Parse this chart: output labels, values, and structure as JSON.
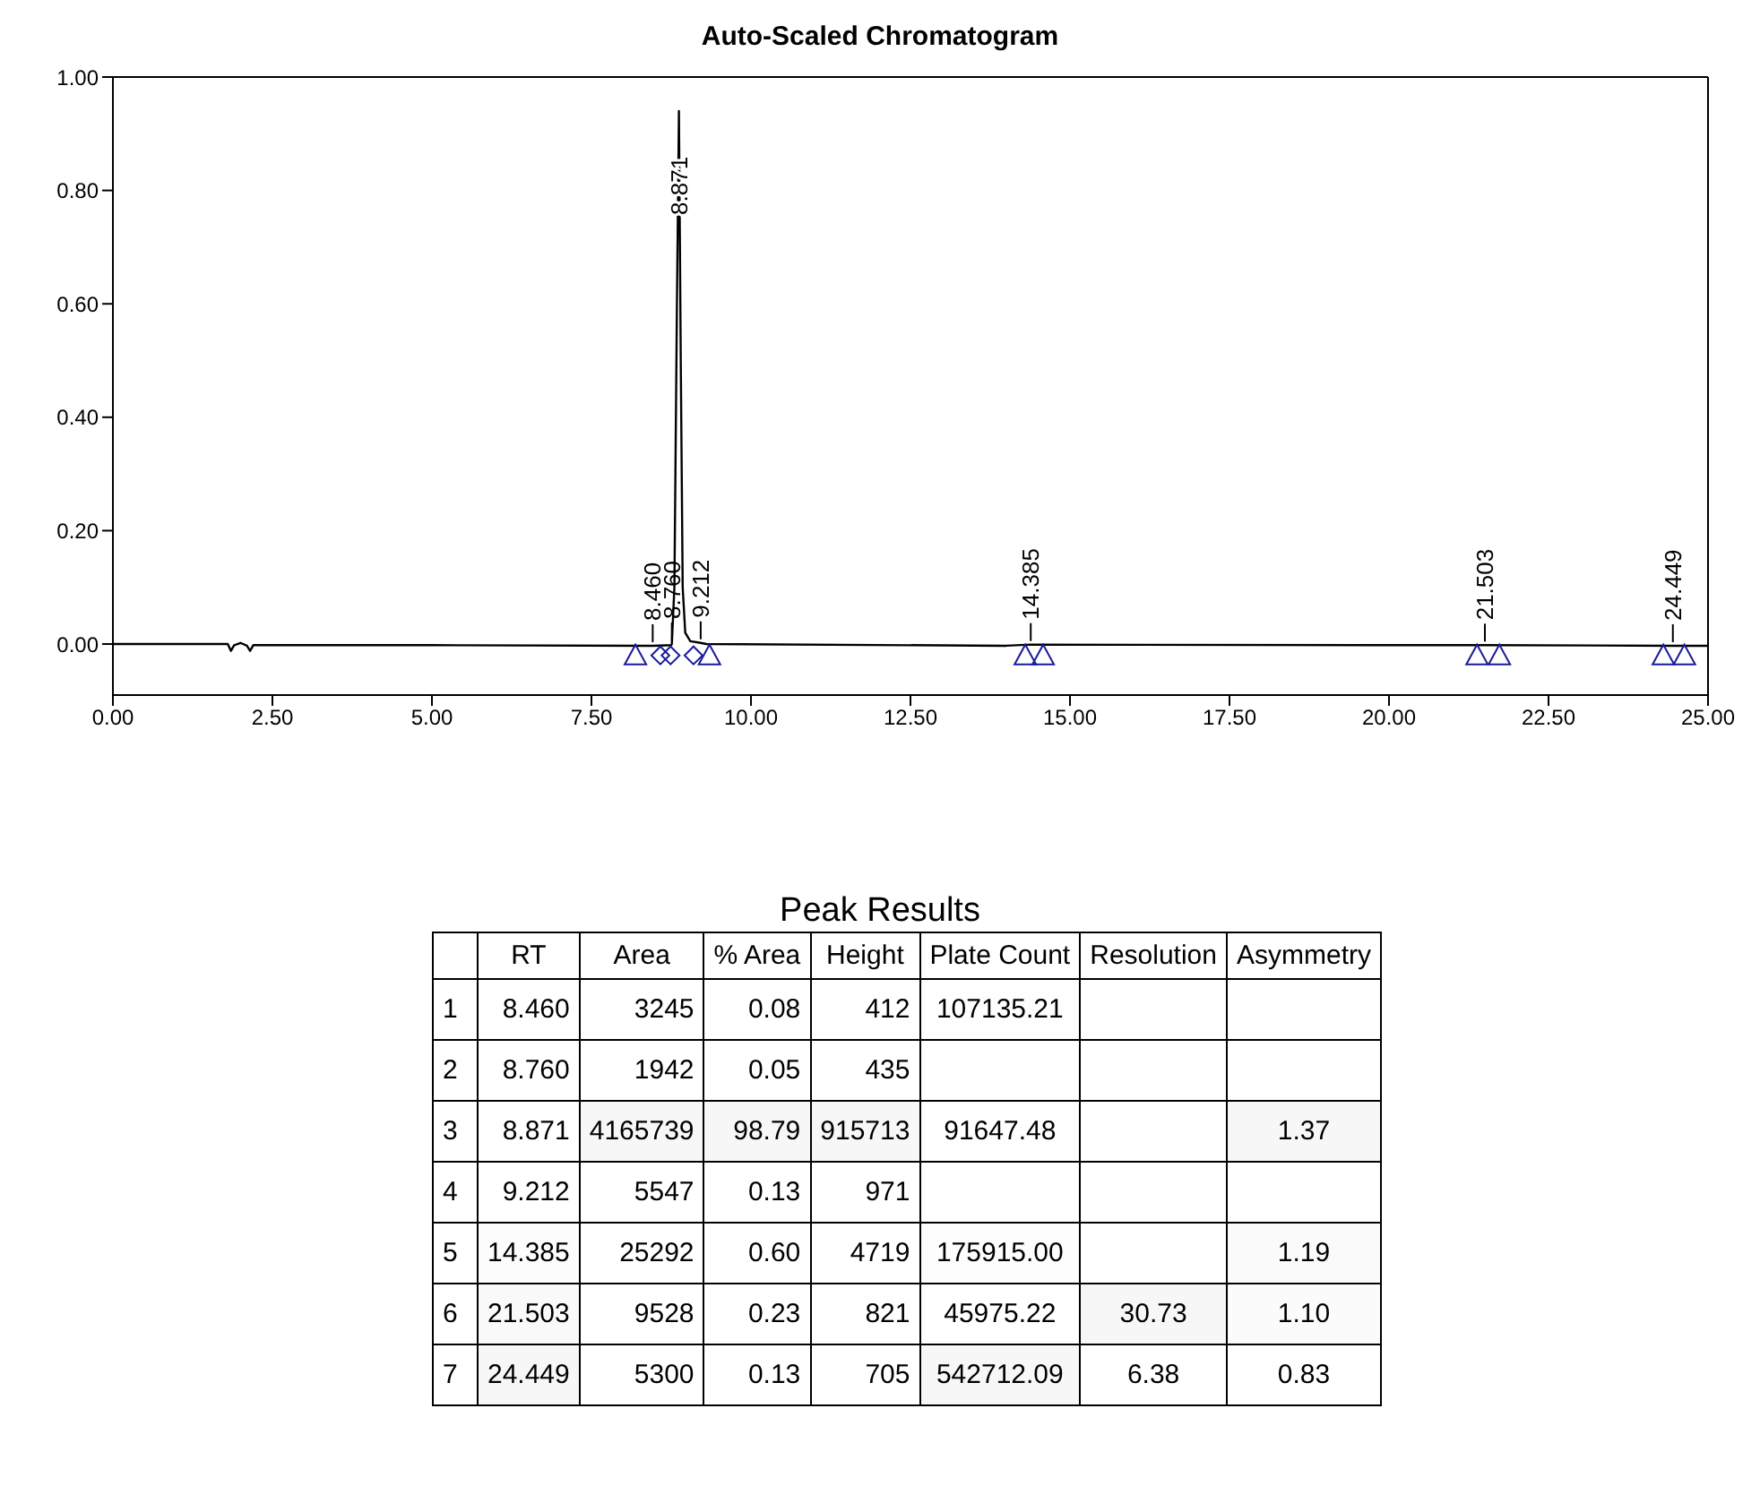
{
  "chart_data": [
    {
      "type": "line",
      "title": "Auto-Scaled Chromatogram",
      "xlim": [
        0,
        25
      ],
      "ylim": [
        -0.09,
        1.0
      ],
      "xticks": [
        {
          "value": 0,
          "label": "0.00"
        },
        {
          "value": 2.5,
          "label": "2.50"
        },
        {
          "value": 5,
          "label": "5.00"
        },
        {
          "value": 7.5,
          "label": "7.50"
        },
        {
          "value": 10,
          "label": "10.00"
        },
        {
          "value": 12.5,
          "label": "12.50"
        },
        {
          "value": 15,
          "label": "15.00"
        },
        {
          "value": 17.5,
          "label": "17.50"
        },
        {
          "value": 20,
          "label": "20.00"
        },
        {
          "value": 22.5,
          "label": "22.50"
        },
        {
          "value": 25,
          "label": "25.00"
        }
      ],
      "yticks": [
        {
          "value": 0,
          "label": "0.00"
        },
        {
          "value": 0.2,
          "label": "0.20"
        },
        {
          "value": 0.4,
          "label": "0.40"
        },
        {
          "value": 0.6,
          "label": "0.60"
        },
        {
          "value": 0.8,
          "label": "0.80"
        },
        {
          "value": 1.0,
          "label": "1.00"
        }
      ],
      "series": [
        {
          "type": "line",
          "color": "#000000",
          "marker": "none",
          "x": [
            0,
            1.8,
            1.85,
            1.9,
            2.0,
            2.1,
            2.15,
            2.2,
            2.3,
            5,
            8.4,
            8.46,
            8.75,
            8.76,
            8.8,
            8.84,
            8.871,
            8.9,
            8.93,
            8.97,
            9.05,
            9.212,
            9.3,
            14,
            14.385,
            20,
            21.503,
            24.449,
            25
          ],
          "values": [
            0,
            0,
            -0.012,
            -0.002,
            0.002,
            -0.003,
            -0.012,
            -0.002,
            -0.002,
            -0.002,
            -0.003,
            -0.003,
            -0.002,
            0,
            0.1,
            0.6,
            0.94,
            0.5,
            0.1,
            0.02,
            0.005,
            0.002,
            0,
            -0.003,
            -0.001,
            -0.002,
            -0.002,
            -0.003,
            -0.003
          ]
        },
        {
          "type": "scatter",
          "color": "#1a1a9c",
          "marker": "triangle",
          "x": [
            8.19,
            9.35,
            14.3,
            14.58,
            21.38,
            21.73,
            24.3,
            24.63
          ],
          "values": [
            -0.02,
            -0.02,
            -0.02,
            -0.02,
            -0.02,
            -0.02,
            -0.02,
            -0.02
          ]
        },
        {
          "type": "scatter",
          "color": "#1a1a9c",
          "marker": "diamond",
          "x": [
            8.58,
            8.74,
            9.1
          ],
          "values": [
            -0.02,
            -0.02,
            -0.02
          ]
        }
      ],
      "annotations": [
        {
          "text": "8.460",
          "x": 8.46,
          "y": -0.003
        },
        {
          "text": "8.760",
          "x": 8.76,
          "y": 0
        },
        {
          "text": "8.871",
          "x": 8.871,
          "y": 0.82
        },
        {
          "text": "9.212",
          "x": 9.212,
          "y": 0.002
        },
        {
          "text": "14.385",
          "x": 14.385,
          "y": -0.001
        },
        {
          "text": "21.503",
          "x": 21.503,
          "y": -0.002
        },
        {
          "text": "24.449",
          "x": 24.449,
          "y": -0.003
        }
      ]
    },
    {
      "type": "heatmap",
      "title": "Peak Results",
      "categories": [
        "RT",
        "Area",
        "% Area",
        "Height",
        "Plate Count",
        "Resolution",
        "Asymmetry"
      ],
      "y_categories": [
        "1",
        "2",
        "3",
        "4",
        "5",
        "6",
        "7"
      ],
      "cells": [
        [
          8.46,
          3245,
          0.08,
          412,
          107135.21,
          null,
          null
        ],
        [
          8.76,
          1942,
          0.05,
          435,
          null,
          null,
          null
        ],
        [
          8.871,
          4165739,
          98.79,
          915713,
          91647.48,
          null,
          1.37
        ],
        [
          9.212,
          5547,
          0.13,
          971,
          null,
          null,
          null
        ],
        [
          14.385,
          25292,
          0.6,
          4719,
          175915.0,
          null,
          1.19
        ],
        [
          21.503,
          9528,
          0.23,
          821,
          45975.22,
          30.73,
          1.1
        ],
        [
          24.449,
          5300,
          0.13,
          705,
          542712.09,
          6.38,
          0.83
        ]
      ],
      "cell_labels": [
        [
          "8.460",
          "3245",
          "0.08",
          "412",
          "107135.21",
          null,
          null
        ],
        [
          "8.760",
          "1942",
          "0.05",
          "435",
          null,
          null,
          null
        ],
        [
          "8.871",
          "4165739",
          "98.79",
          "915713",
          "91647.48",
          null,
          "1.37"
        ],
        [
          "9.212",
          "5547",
          "0.13",
          "971",
          null,
          null,
          null
        ],
        [
          "14.385",
          "25292",
          "0.60",
          "4719",
          "175915.00",
          null,
          "1.19"
        ],
        [
          "21.503",
          "9528",
          "0.23",
          "821",
          "45975.22",
          "30.73",
          "1.10"
        ],
        [
          "24.449",
          "5300",
          "0.13",
          "705",
          "542712.09",
          "6.38",
          "0.83"
        ]
      ]
    }
  ]
}
